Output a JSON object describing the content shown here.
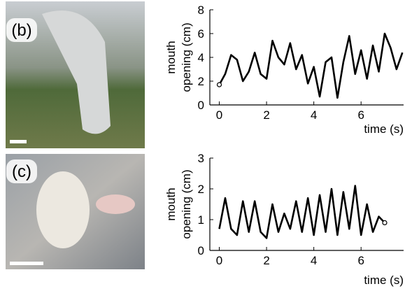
{
  "panels": [
    {
      "label": "(b)"
    },
    {
      "label": "(c)"
    }
  ],
  "chart_data": [
    {
      "type": "line",
      "ylabel": [
        "mouth",
        "opening (cm)"
      ],
      "xlabel": "time (s)",
      "x": [
        0,
        0.25,
        0.5,
        0.75,
        1,
        1.25,
        1.5,
        1.75,
        2,
        2.25,
        2.5,
        2.75,
        3,
        3.25,
        3.5,
        3.75,
        4,
        4.25,
        4.5,
        4.75,
        5,
        5.25,
        5.5,
        5.75,
        6,
        6.25,
        6.5,
        6.75,
        7,
        7.25,
        7.5,
        7.75
      ],
      "series": [
        {
          "color": "#000000",
          "values": [
            1.7,
            2.6,
            4.2,
            3.8,
            2.0,
            2.8,
            4.4,
            2.6,
            2.2,
            5.4,
            4.0,
            3.4,
            5.2,
            3.0,
            4.2,
            1.8,
            3.2,
            0.7,
            3.6,
            4.0,
            0.6,
            3.6,
            5.8,
            2.6,
            4.6,
            2.2,
            5.0,
            2.8,
            6.0,
            4.8,
            3.0,
            4.4
          ]
        }
      ],
      "xlim": [
        -0.4,
        7.8
      ],
      "xticks": [
        0,
        2,
        4,
        6
      ],
      "ylim": [
        0,
        8
      ],
      "yticks": [
        0,
        2,
        4,
        6,
        8
      ]
    },
    {
      "type": "line",
      "ylabel": [
        "mouth",
        "opening (cm)"
      ],
      "xlabel": "time (s)",
      "x": [
        0,
        0.25,
        0.5,
        0.75,
        1,
        1.25,
        1.5,
        1.75,
        2,
        2.25,
        2.5,
        2.75,
        3,
        3.25,
        3.5,
        3.75,
        4,
        4.25,
        4.5,
        4.75,
        5,
        5.25,
        5.5,
        5.75,
        6,
        6.25,
        6.5,
        6.75,
        7
      ],
      "series": [
        {
          "color": "#000000",
          "values": [
            0.7,
            1.7,
            0.7,
            0.5,
            1.6,
            0.6,
            1.6,
            0.6,
            0.4,
            1.5,
            0.6,
            1.2,
            0.7,
            1.6,
            0.6,
            1.7,
            0.5,
            1.8,
            0.6,
            2.0,
            0.5,
            1.9,
            0.7,
            2.1,
            0.5,
            1.5,
            0.6,
            1.1,
            0.9
          ]
        }
      ],
      "xlim": [
        -0.4,
        7.8
      ],
      "xticks": [
        0,
        2,
        4,
        6
      ],
      "ylim": [
        0,
        3
      ],
      "yticks": [
        0,
        1,
        2,
        3
      ]
    }
  ]
}
